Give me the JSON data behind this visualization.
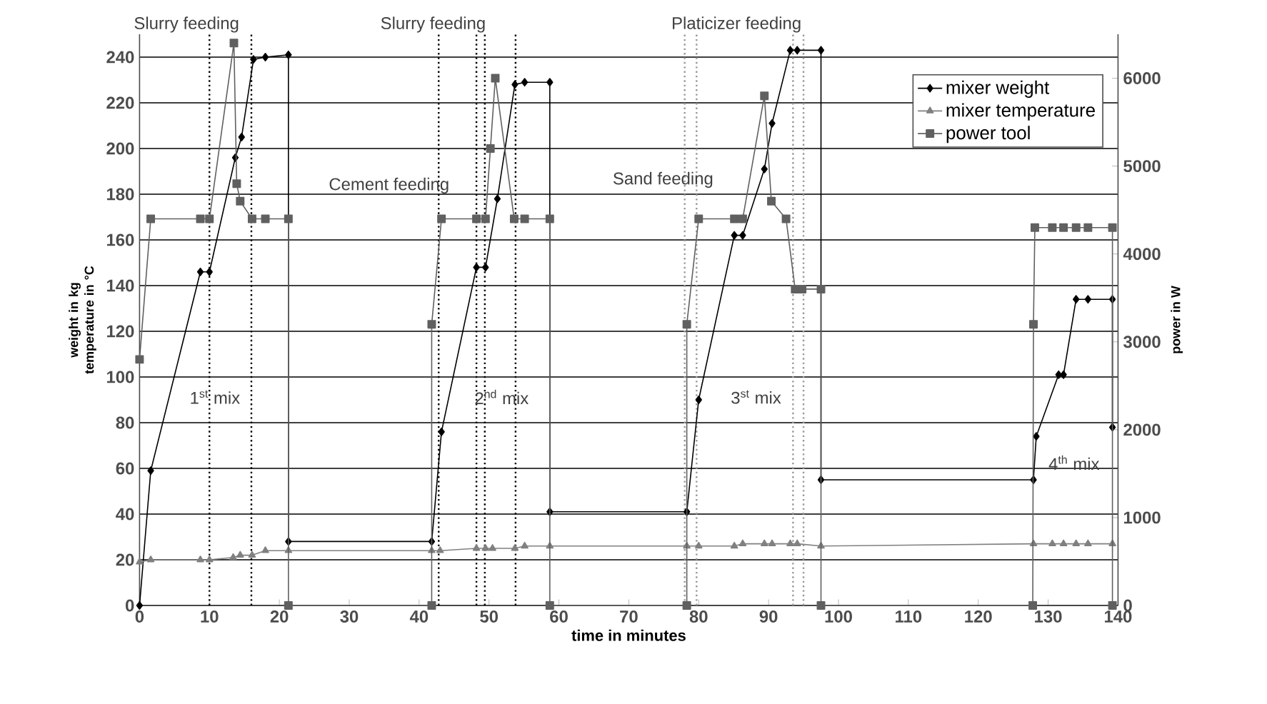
{
  "chart_data": {
    "type": "line",
    "xlabel": "time in minutes",
    "ylabel": "weight in kg temperature in °C",
    "y2label": "power in W",
    "xlim": [
      0,
      140
    ],
    "xticks": [
      0,
      10,
      20,
      30,
      40,
      50,
      60,
      70,
      80,
      90,
      100,
      110,
      120,
      130,
      140
    ],
    "ylim": [
      0,
      250
    ],
    "yticks": [
      0,
      20,
      40,
      60,
      80,
      100,
      120,
      140,
      160,
      180,
      200,
      220,
      240
    ],
    "y2lim": [
      0,
      6500
    ],
    "y2ticks": [
      0,
      1000,
      2000,
      3000,
      4000,
      5000,
      6000
    ],
    "grid": "y",
    "legend": "top right",
    "line_style": "solid",
    "series": [
      {
        "name": "mixer weight",
        "color": "#000000",
        "marker": "diamond",
        "x": [
          0,
          1.6,
          8.7,
          10,
          13.4,
          13.7,
          14.6,
          16.3,
          18,
          21.3,
          21.3,
          41.8,
          43.2,
          48.2,
          49.5,
          51.2,
          53.7,
          55.1,
          58.7,
          58.7,
          78.3,
          80,
          85.1,
          86.3,
          89.4,
          90.5,
          93.1,
          94.1,
          97.5,
          97.5,
          127.9,
          128.3,
          131.5,
          132.2,
          134,
          135.7,
          139.2,
          139.2
        ],
        "values": [
          0,
          59,
          146,
          146,
          null,
          196,
          205,
          239,
          240,
          241,
          28,
          28,
          76,
          148,
          148,
          178,
          228,
          229,
          229,
          41,
          41,
          90,
          162,
          162,
          191,
          211,
          243,
          243,
          243,
          55,
          55,
          74,
          101,
          101,
          134,
          134,
          134,
          78
        ]
      },
      {
        "name": "mixer temperature",
        "color": "#808080",
        "marker": "triangle",
        "x": [
          0,
          1.6,
          8.7,
          10,
          13.4,
          14.4,
          16.1,
          18,
          21.3,
          41.8,
          43,
          48.2,
          49.5,
          50.5,
          53.7,
          55.1,
          58.7,
          78.3,
          80,
          85.1,
          86.3,
          89.4,
          90.5,
          93.1,
          94.1,
          97.5,
          127.9,
          130.6,
          132.2,
          134,
          135.7,
          139.2
        ],
        "values": [
          19,
          20,
          20,
          20,
          21,
          22,
          22,
          24,
          24,
          24,
          24,
          25,
          25,
          25,
          25,
          26,
          26,
          26,
          26,
          26,
          27,
          27,
          27,
          27,
          27,
          26,
          27,
          27,
          27,
          27,
          27,
          27
        ]
      },
      {
        "name": "power tool",
        "color": "#606060",
        "marker": "square",
        "axis": "y2",
        "x": [
          0,
          1.6,
          8.7,
          10,
          13.5,
          13.9,
          14.4,
          16.1,
          18,
          21.3,
          21.3,
          41.8,
          41.8,
          43.2,
          48.2,
          49.5,
          50.2,
          50.9,
          53.6,
          55.1,
          58.7,
          58.7,
          78.3,
          78.3,
          80,
          85.1,
          86.3,
          89.4,
          90.4,
          92.5,
          93.8,
          94.8,
          97.5,
          97.5,
          127.8,
          127.9,
          128.1,
          130.6,
          132.2,
          134,
          135.7,
          139.2,
          139.2
        ],
        "values": [
          2800,
          4400,
          4400,
          4400,
          6400,
          4800,
          4600,
          4400,
          4400,
          4400,
          0,
          0,
          3200,
          4400,
          4400,
          4400,
          5200,
          6000,
          4400,
          4400,
          4400,
          0,
          0,
          3200,
          4400,
          4400,
          4400,
          5800,
          4600,
          4400,
          3600,
          3600,
          3600,
          0,
          0,
          3200,
          4300,
          4300,
          4300,
          4300,
          4300,
          4300,
          0
        ]
      }
    ],
    "ref_lines": [
      {
        "axis": "x",
        "value": 10,
        "color": "#000000",
        "line_style": "dotted"
      },
      {
        "axis": "x",
        "value": 16,
        "color": "#000000",
        "line_style": "dotted"
      },
      {
        "axis": "x",
        "value": 42.8,
        "color": "#000000",
        "line_style": "dotted"
      },
      {
        "axis": "x",
        "value": 48.2,
        "color": "#000000",
        "line_style": "dotted"
      },
      {
        "axis": "x",
        "value": 49.4,
        "color": "#000000",
        "line_style": "dotted"
      },
      {
        "axis": "x",
        "value": 53.8,
        "color": "#000000",
        "line_style": "dotted"
      },
      {
        "axis": "x",
        "value": 78,
        "color": "#999999",
        "line_style": "dotted"
      },
      {
        "axis": "x",
        "value": 79.7,
        "color": "#999999",
        "line_style": "dotted"
      },
      {
        "axis": "x",
        "value": 93.5,
        "color": "#999999",
        "line_style": "dotted"
      },
      {
        "axis": "x",
        "value": 95,
        "color": "#999999",
        "line_style": "dotted"
      }
    ],
    "annotations": [
      "Slurry feeding",
      "Slurry feeding",
      "Platicizer feeding",
      "Cement feeding",
      "Sand feeding",
      "1$^{st}$ mix",
      "2$^{nd}$ mix",
      "3$^{st}$ mix",
      "4$^{th}$ mix"
    ]
  }
}
